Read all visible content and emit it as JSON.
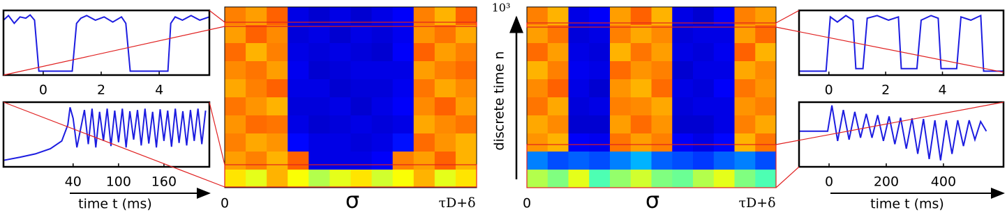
{
  "chart_data": [
    {
      "type": "line",
      "color": "#1c1ce0",
      "xlim": [
        -1.37,
        5.73
      ],
      "ylim": [
        0,
        1
      ],
      "xticks": [
        0,
        2,
        4
      ],
      "x": [
        -1.37,
        -1.2,
        -1.0,
        -0.8,
        -0.6,
        -0.45,
        -0.3,
        -0.15,
        1.0,
        1.15,
        1.3,
        1.5,
        1.8,
        2.1,
        2.4,
        2.7,
        2.85,
        3.0,
        4.3,
        4.4,
        4.55,
        4.8,
        5.1,
        5.4,
        5.73
      ],
      "values": [
        0.85,
        0.92,
        0.8,
        0.9,
        0.88,
        0.93,
        0.85,
        0.06,
        0.06,
        0.8,
        0.88,
        0.92,
        0.85,
        0.9,
        0.82,
        0.9,
        0.8,
        0.06,
        0.06,
        0.8,
        0.9,
        0.85,
        0.92,
        0.85,
        0.9
      ]
    },
    {
      "type": "line",
      "color": "#1c1ce0",
      "xlim": [
        -52,
        220
      ],
      "ylim": [
        0,
        1
      ],
      "xticks": [
        40,
        100,
        160
      ],
      "xlabel": "time t (ms)",
      "x": [
        -52,
        -30,
        -10,
        10,
        25,
        33,
        36,
        40,
        45,
        55,
        60,
        65,
        70,
        75,
        80,
        85,
        90,
        95,
        100,
        105,
        110,
        115,
        120,
        125,
        130,
        135,
        140,
        145,
        150,
        155,
        160,
        165,
        170,
        175,
        180,
        185,
        190,
        195,
        200,
        205,
        210,
        215
      ],
      "values": [
        0.1,
        0.15,
        0.2,
        0.28,
        0.4,
        0.65,
        0.92,
        0.75,
        0.3,
        0.88,
        0.35,
        0.9,
        0.3,
        0.85,
        0.4,
        0.9,
        0.32,
        0.87,
        0.38,
        0.9,
        0.3,
        0.86,
        0.42,
        0.88,
        0.33,
        0.9,
        0.36,
        0.85,
        0.3,
        0.89,
        0.4,
        0.87,
        0.31,
        0.9,
        0.37,
        0.86,
        0.33,
        0.88,
        0.4,
        0.9,
        0.35,
        0.87
      ]
    },
    {
      "type": "heatmap",
      "colormap": "jet",
      "xtick_labels": [
        "0",
        "τD+δ"
      ],
      "xlabel": "σ",
      "values": [
        [
          0.75,
          0.72,
          0.78,
          0.1,
          0.08,
          0.1,
          0.08,
          0.1,
          0.12,
          0.75,
          0.7,
          0.78
        ],
        [
          0.72,
          0.78,
          0.74,
          0.09,
          0.1,
          0.08,
          0.1,
          0.09,
          0.11,
          0.73,
          0.76,
          0.71
        ],
        [
          0.77,
          0.7,
          0.75,
          0.1,
          0.09,
          0.1,
          0.09,
          0.08,
          0.12,
          0.78,
          0.72,
          0.75
        ],
        [
          0.74,
          0.76,
          0.72,
          0.11,
          0.08,
          0.09,
          0.1,
          0.1,
          0.1,
          0.72,
          0.75,
          0.77
        ],
        [
          0.71,
          0.75,
          0.78,
          0.1,
          0.1,
          0.08,
          0.09,
          0.09,
          0.11,
          0.76,
          0.71,
          0.74
        ],
        [
          0.76,
          0.73,
          0.7,
          0.09,
          0.09,
          0.1,
          0.08,
          0.1,
          0.12,
          0.74,
          0.78,
          0.72
        ],
        [
          0.73,
          0.77,
          0.76,
          0.1,
          0.08,
          0.09,
          0.1,
          0.09,
          0.1,
          0.71,
          0.74,
          0.76
        ],
        [
          0.75,
          0.71,
          0.73,
          0.13,
          0.1,
          0.1,
          0.09,
          0.1,
          0.14,
          0.77,
          0.73,
          0.7
        ],
        [
          0.72,
          0.75,
          0.7,
          0.78,
          0.1,
          0.1,
          0.1,
          0.12,
          0.75,
          0.72,
          0.78,
          0.7
        ],
        [
          0.65,
          0.6,
          0.7,
          0.62,
          0.55,
          0.6,
          0.65,
          0.58,
          0.62,
          0.7,
          0.6,
          0.65
        ]
      ]
    },
    {
      "type": "heatmap",
      "colormap": "jet",
      "xtick_labels": [
        "0",
        "τD+δ"
      ],
      "xlabel": "σ",
      "ylabel": "discrete time n",
      "ytick_label": "10³",
      "values": [
        [
          0.75,
          0.7,
          0.1,
          0.12,
          0.72,
          0.78,
          0.7,
          0.1,
          0.08,
          0.12,
          0.75,
          0.72
        ],
        [
          0.72,
          0.76,
          0.09,
          0.1,
          0.75,
          0.71,
          0.74,
          0.09,
          0.1,
          0.1,
          0.72,
          0.77
        ],
        [
          0.77,
          0.72,
          0.1,
          0.09,
          0.7,
          0.76,
          0.72,
          0.1,
          0.09,
          0.11,
          0.78,
          0.7
        ],
        [
          0.7,
          0.75,
          0.11,
          0.1,
          0.77,
          0.73,
          0.75,
          0.08,
          0.1,
          0.1,
          0.71,
          0.74
        ],
        [
          0.74,
          0.78,
          0.1,
          0.08,
          0.73,
          0.7,
          0.77,
          0.1,
          0.09,
          0.12,
          0.76,
          0.73
        ],
        [
          0.76,
          0.71,
          0.09,
          0.1,
          0.75,
          0.74,
          0.71,
          0.09,
          0.1,
          0.1,
          0.73,
          0.75
        ],
        [
          0.71,
          0.74,
          0.08,
          0.08,
          0.72,
          0.77,
          0.73,
          0.08,
          0.08,
          0.1,
          0.75,
          0.71
        ],
        [
          0.73,
          0.7,
          0.12,
          0.11,
          0.76,
          0.72,
          0.75,
          0.12,
          0.1,
          0.13,
          0.7,
          0.76
        ],
        [
          0.25,
          0.2,
          0.22,
          0.2,
          0.25,
          0.3,
          0.22,
          0.2,
          0.18,
          0.22,
          0.25,
          0.2
        ],
        [
          0.55,
          0.5,
          0.6,
          0.45,
          0.52,
          0.58,
          0.5,
          0.48,
          0.55,
          0.6,
          0.5,
          0.45
        ]
      ]
    },
    {
      "type": "line",
      "color": "#1c1ce0",
      "xlim": [
        -1.05,
        6.15
      ],
      "ylim": [
        0,
        1
      ],
      "xticks": [
        0,
        2,
        4
      ],
      "x": [
        -1.05,
        -0.1,
        0.05,
        0.3,
        0.6,
        0.85,
        0.95,
        1.2,
        1.35,
        1.7,
        2.1,
        2.45,
        2.55,
        3.1,
        3.25,
        3.6,
        3.85,
        3.95,
        4.5,
        4.65,
        5.0,
        5.35,
        5.45,
        6.15
      ],
      "values": [
        0.06,
        0.06,
        0.9,
        0.82,
        0.92,
        0.85,
        0.1,
        0.1,
        0.88,
        0.92,
        0.85,
        0.9,
        0.1,
        0.1,
        0.85,
        0.92,
        0.88,
        0.1,
        0.1,
        0.9,
        0.85,
        0.92,
        0.06,
        0.06
      ]
    },
    {
      "type": "line",
      "color": "#1c1ce0",
      "xlim": [
        -105,
        610
      ],
      "ylim": [
        0,
        1
      ],
      "xticks": [
        0,
        200,
        400
      ],
      "xlabel": "time t (ms)",
      "x": [
        -105,
        -5,
        10,
        30,
        50,
        70,
        90,
        110,
        130,
        150,
        170,
        190,
        210,
        230,
        250,
        270,
        290,
        310,
        330,
        350,
        370,
        390,
        410,
        430,
        450,
        470,
        490,
        510,
        530,
        550
      ],
      "values": [
        0.55,
        0.55,
        0.95,
        0.4,
        0.88,
        0.42,
        0.85,
        0.45,
        0.82,
        0.45,
        0.8,
        0.4,
        0.78,
        0.35,
        0.76,
        0.28,
        0.75,
        0.2,
        0.74,
        0.12,
        0.72,
        0.1,
        0.72,
        0.2,
        0.72,
        0.32,
        0.72,
        0.42,
        0.7,
        0.55
      ]
    }
  ]
}
